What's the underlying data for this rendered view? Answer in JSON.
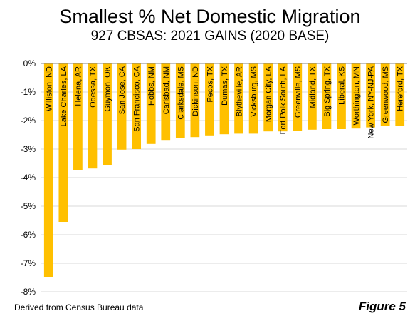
{
  "title": "Smallest % Net Domestic Migration",
  "subtitle": "927 CBSAS: 2021 GAINS (2020 BASE)",
  "source": "Derived from Census Bureau data",
  "figure_label": "Figure 5",
  "colors": {
    "bar": "#FFC000",
    "grid": "#d9d9d9",
    "axis": "#808080"
  },
  "chart_data": {
    "type": "bar",
    "categories": [
      "Williston, ND",
      "Lake Charles, LA",
      "Helena, AR",
      "Odessa, TX",
      "Guymon, OK",
      "San Jose, CA",
      "San Francisco, CA",
      "Hobbs, NM",
      "Carlsbad, NM",
      "Clarksdale, MS",
      "Dickinson, ND",
      "Pecos, TX",
      "Dumas, TX",
      "Blytheville, AR",
      "Vicksburg, MS",
      "Morgan City, LA",
      "Fort Polk South, LA",
      "Greenville, MS",
      "Midland, TX",
      "Big Spring, TX",
      "Liberal, KS",
      "Worthington, MN",
      "New York, NY-NJ-PA",
      "Greenwood, MS",
      "Hereford, TX"
    ],
    "values": [
      -7.5,
      -5.55,
      -3.75,
      -3.68,
      -3.55,
      -3.02,
      -3.0,
      -2.82,
      -2.68,
      -2.6,
      -2.58,
      -2.52,
      -2.48,
      -2.46,
      -2.46,
      -2.38,
      -2.38,
      -2.36,
      -2.32,
      -2.3,
      -2.3,
      -2.28,
      -2.24,
      -2.2,
      -2.18
    ],
    "ylim": [
      -8,
      0
    ],
    "yticks": [
      "0%",
      "-1%",
      "-2%",
      "-3%",
      "-4%",
      "-5%",
      "-6%",
      "-7%",
      "-8%"
    ],
    "grid": true,
    "legend": "none"
  }
}
